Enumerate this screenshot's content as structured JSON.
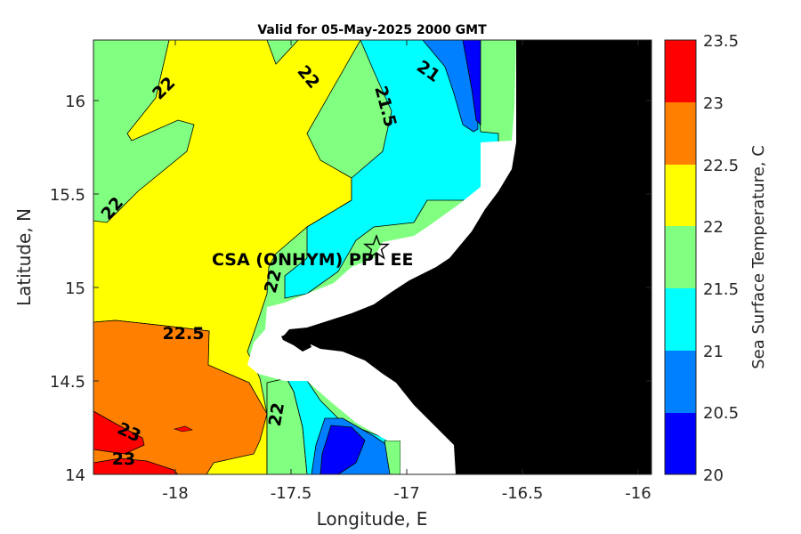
{
  "title": "Valid for 05-May-2025 2000 GMT",
  "x_axis": {
    "label": "Longitude, E",
    "ticks": [
      "-18",
      "-17.5",
      "-17",
      "-16.5",
      "-16"
    ]
  },
  "y_axis": {
    "label": "Latitude, N",
    "ticks": [
      "14",
      "14.5",
      "15",
      "15.5",
      "16"
    ]
  },
  "colorbar": {
    "label": "Sea Surface Temperature, C",
    "ticks": [
      "20",
      "20.5",
      "21",
      "21.5",
      "22",
      "22.5",
      "23",
      "23.5"
    ],
    "colors": [
      "#0000ff",
      "#0080ff",
      "#00ffff",
      "#80ff80",
      "#ffff00",
      "#ff8000",
      "#ff0000"
    ]
  },
  "contour_labels": [
    "22",
    "22",
    "22",
    "22",
    "22",
    "22.5",
    "23",
    "23",
    "21.5",
    "21"
  ],
  "station": {
    "label": "CSA (ONHYM) PPL EE",
    "marker": "star-icon"
  },
  "colors": {
    "land": "#000000",
    "masked": "#ffffff"
  }
}
